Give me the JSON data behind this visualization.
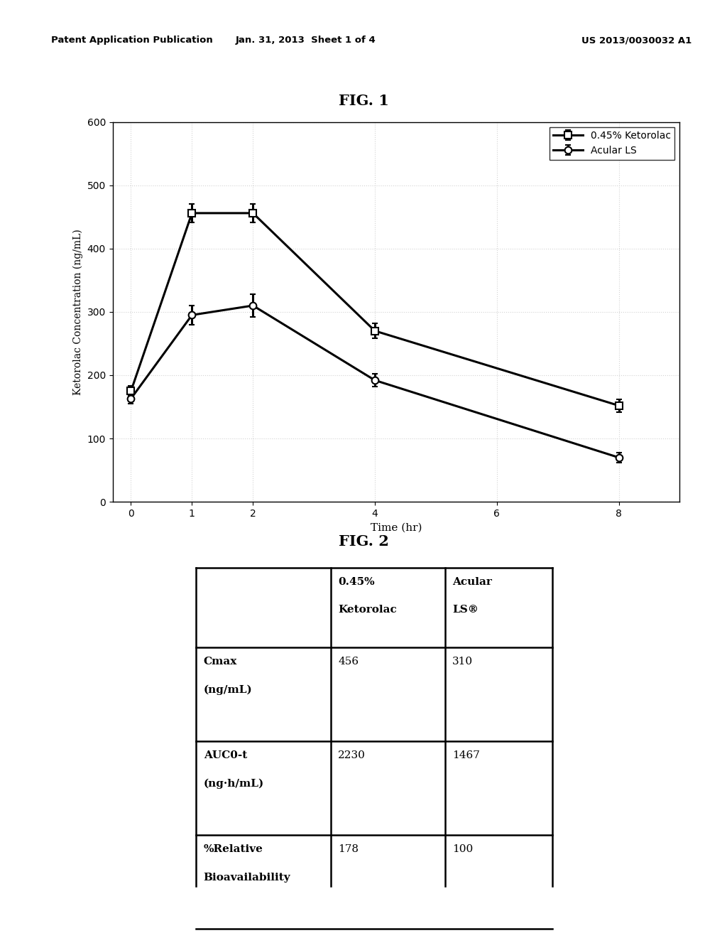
{
  "fig1_title": "FIG. 1",
  "fig2_title": "FIG. 2",
  "header_left": "Patent Application Publication",
  "header_mid": "Jan. 31, 2013  Sheet 1 of 4",
  "header_right": "US 2013/0030032 A1",
  "k_time": [
    0,
    1,
    2,
    4,
    8
  ],
  "k_vals": [
    175,
    456,
    456,
    270,
    152
  ],
  "k_err": [
    8,
    15,
    15,
    12,
    10
  ],
  "a_time": [
    0,
    1,
    2,
    4,
    8
  ],
  "a_vals": [
    163,
    295,
    310,
    192,
    70
  ],
  "a_err": [
    8,
    15,
    18,
    10,
    8
  ],
  "xlabel": "Time (hr)",
  "ylabel": "Ketorolac Concentration (ng/mL)",
  "legend_045": "0.45% Ketorolac",
  "legend_acular": "Acular LS",
  "ylim": [
    0,
    600
  ],
  "yticks": [
    0,
    100,
    200,
    300,
    400,
    500,
    600
  ],
  "xticks": [
    0,
    1,
    2,
    4,
    6,
    8
  ],
  "table_row0_col0": "",
  "table_row0_col1a": "0.45%",
  "table_row0_col1b": "Ketorolac",
  "table_row0_col2a": "Acular",
  "table_row0_col2b": "LS®",
  "table_row1_col0a": "Cmax",
  "table_row1_col0b": "(ng/mL)",
  "table_row1_col1": "456",
  "table_row1_col2": "310",
  "table_row2_col0a": "AUC0-t",
  "table_row2_col0b": "(ng·h/mL)",
  "table_row2_col1": "2230",
  "table_row2_col2": "1467",
  "table_row3_col0a": "%Relative",
  "table_row3_col0b": "Bioavailability",
  "table_row3_col1": "178",
  "table_row3_col2": "100",
  "bg_color": "#ffffff",
  "line_color": "#000000"
}
